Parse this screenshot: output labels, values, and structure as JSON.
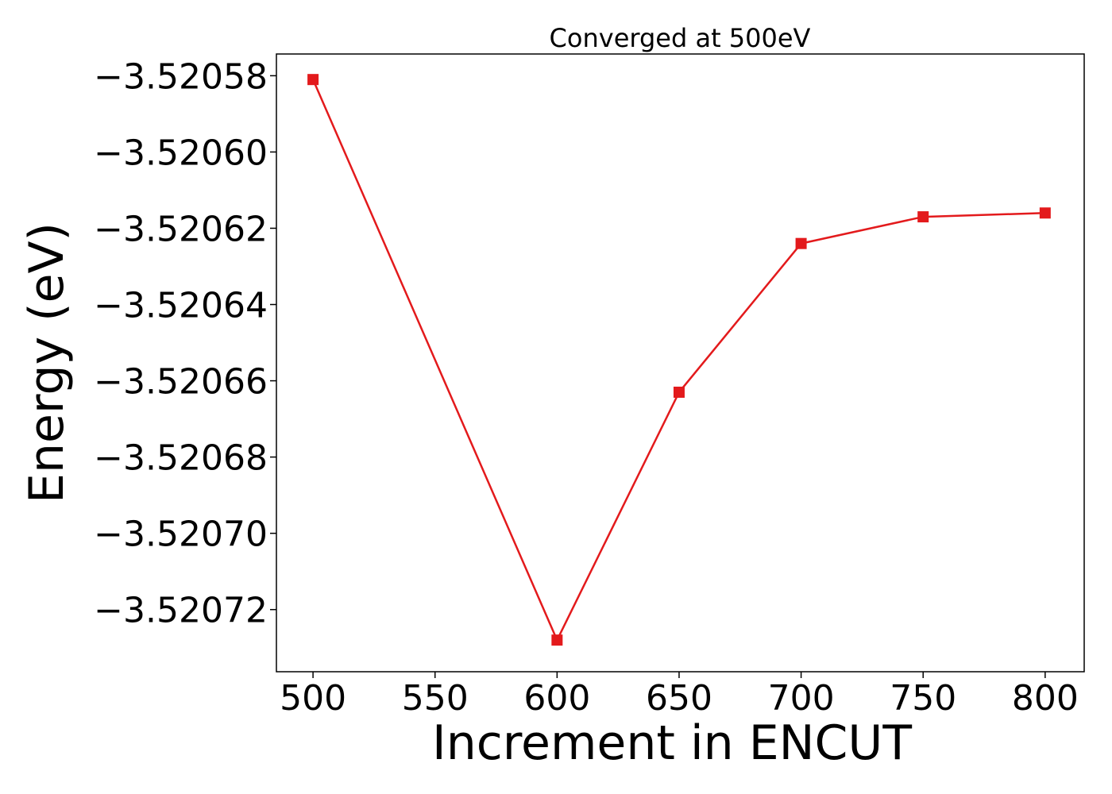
{
  "chart_data": {
    "type": "line",
    "title": "Converged at 500eV",
    "xlabel": "Increment in ENCUT",
    "ylabel": "Energy (eV)",
    "x": [
      500,
      600,
      650,
      700,
      750,
      800
    ],
    "series": [
      {
        "values": [
          -3.520581,
          -3.520728,
          -3.520663,
          -3.520624,
          -3.520617,
          -3.520616
        ],
        "color": "#e31a1c",
        "marker": "square"
      }
    ],
    "xlim": [
      485,
      816
    ],
    "ylim": [
      -3.5207363,
      -3.5205743
    ],
    "xticks": [
      500,
      550,
      600,
      650,
      700,
      750,
      800
    ],
    "xtick_labels": [
      "500",
      "550",
      "600",
      "650",
      "700",
      "750",
      "800"
    ],
    "yticks": [
      -3.52058,
      -3.5206,
      -3.52062,
      -3.52064,
      -3.52066,
      -3.52068,
      -3.5207,
      -3.52072
    ],
    "ytick_labels": [
      "−3.52058",
      "−3.52060",
      "−3.52062",
      "−3.52064",
      "−3.52066",
      "−3.52068",
      "−3.52070",
      "−3.52072"
    ],
    "grid": false,
    "legend": "none"
  }
}
